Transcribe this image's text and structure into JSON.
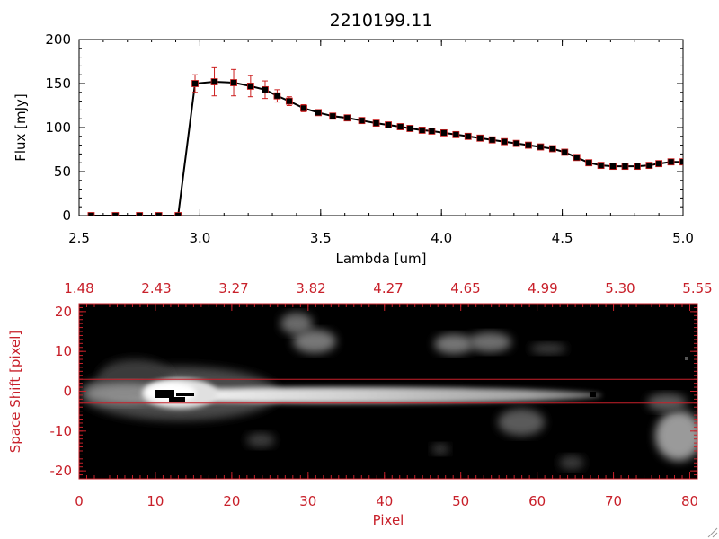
{
  "chart_data": [
    {
      "type": "line",
      "title": "2210199.11",
      "xlabel": "Lambda [um]",
      "ylabel": "Flux [mJy]",
      "xlim": [
        2.5,
        5.0
      ],
      "ylim": [
        0,
        200
      ],
      "x_ticks": [
        "2.5",
        "3.0",
        "3.5",
        "4.0",
        "4.5",
        "5.0"
      ],
      "y_ticks": [
        "0",
        "50",
        "100",
        "150",
        "200"
      ],
      "series": [
        {
          "marker": "square",
          "line_color": "#000000",
          "marker_color": "#000000",
          "error_color": "#cc1f1f",
          "x": [
            2.55,
            2.65,
            2.75,
            2.83,
            2.91,
            2.98,
            3.06,
            3.14,
            3.21,
            3.27,
            3.32,
            3.37,
            3.43,
            3.49,
            3.55,
            3.61,
            3.67,
            3.73,
            3.78,
            3.83,
            3.87,
            3.92,
            3.96,
            4.01,
            4.06,
            4.11,
            4.16,
            4.21,
            4.26,
            4.31,
            4.36,
            4.41,
            4.46,
            4.51,
            4.56,
            4.61,
            4.66,
            4.71,
            4.76,
            4.81,
            4.86,
            4.9,
            4.95,
            5.0
          ],
          "y": [
            0,
            0,
            0,
            0,
            0,
            150,
            152,
            151,
            147,
            143,
            136,
            130,
            122,
            117,
            113,
            111,
            108,
            105,
            103,
            101,
            99,
            97,
            96,
            94,
            92,
            90,
            88,
            86,
            84,
            82,
            80,
            78,
            76,
            72,
            66,
            60,
            57,
            56,
            56,
            56,
            57,
            59,
            61,
            61
          ],
          "err": [
            0,
            0,
            0,
            0,
            0,
            10,
            16,
            15,
            12,
            10,
            7,
            5,
            4,
            3,
            3,
            3,
            3,
            3,
            3,
            3,
            3,
            3,
            3,
            3,
            3,
            3,
            3,
            3,
            3,
            3,
            3,
            3,
            3,
            3,
            3,
            3,
            3,
            3,
            3,
            3,
            3,
            3,
            3,
            3
          ]
        }
      ]
    },
    {
      "type": "heatmap",
      "xlabel": "Pixel",
      "ylabel": "Space Shift [pixel]",
      "xlim": [
        0,
        81
      ],
      "ylim": [
        -22,
        22
      ],
      "x_ticks": [
        "0",
        "10",
        "20",
        "30",
        "40",
        "50",
        "60",
        "70",
        "80"
      ],
      "y_ticks": [
        "-20",
        "-10",
        "0",
        "10",
        "20"
      ],
      "top_axis_ticks": [
        "1.48",
        "2.43",
        "3.27",
        "3.82",
        "4.27",
        "4.65",
        "4.99",
        "5.30",
        "5.55"
      ],
      "extraction_window": {
        "lower": -3,
        "upper": 3,
        "color": "#c8202a"
      },
      "colormap": "grayscale",
      "background": "#000000"
    }
  ]
}
